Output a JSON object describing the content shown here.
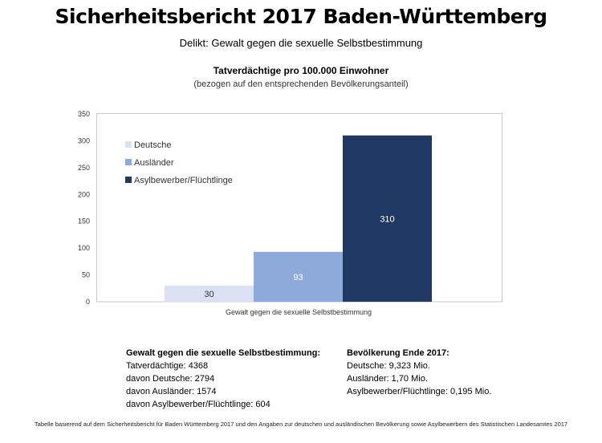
{
  "header": {
    "title": "Sicherheitsbericht 2017 Baden-Württemberg",
    "subtitle": "Delikt: Gewalt gegen die sexuelle Selbstbestimmung"
  },
  "chart_data": {
    "type": "bar",
    "title": "Tatverdächtige pro 100.000 Einwohner",
    "subtitle": "(bezogen auf den entsprechenden Bevölkerungsanteil)",
    "categories": [
      "Gewalt gegen die sexuelle Selbstbestimmung"
    ],
    "series": [
      {
        "name": "Deutsche",
        "values": [
          30
        ],
        "color": "#d9e1f2",
        "label": "30",
        "label_color": "#333333"
      },
      {
        "name": "Ausländer",
        "values": [
          93
        ],
        "color": "#8eaadb",
        "label": "93",
        "label_color": "#ffffff"
      },
      {
        "name": "Asylbewerber/Flüchtlinge",
        "values": [
          310
        ],
        "color": "#203864",
        "label": "310",
        "label_color": "#ffffff"
      }
    ],
    "ylim": [
      0,
      350
    ],
    "yticks": [
      "0",
      "50",
      "100",
      "150",
      "200",
      "250",
      "300",
      "350"
    ],
    "grid": false,
    "legend_position": "top-left"
  },
  "info_left": {
    "heading": "Gewalt gegen die sexuelle Selbstbestimmung:",
    "lines": [
      "Tatverdächtige: 4368",
      "davon Deutsche: 2794",
      "davon Ausländer: 1574",
      "davon Asylbewerber/Flüchtlinge: 604"
    ]
  },
  "info_right": {
    "heading": "Bevölkerung Ende 2017:",
    "lines": [
      "Deutsche: 9,323 Mio.",
      "Ausländer: 1,70 Mio.",
      "Asylbewerber/Flüchtlinge: 0,195 Mio."
    ]
  },
  "footnote": "Tabelle basierend auf dem Sicherheitsbericht für Baden Württemberg 2017 und den Angaben zur deutschen und ausländischen Bevölkerung sowie Asylbewerbern des Statistischen Landesamtes 2017"
}
